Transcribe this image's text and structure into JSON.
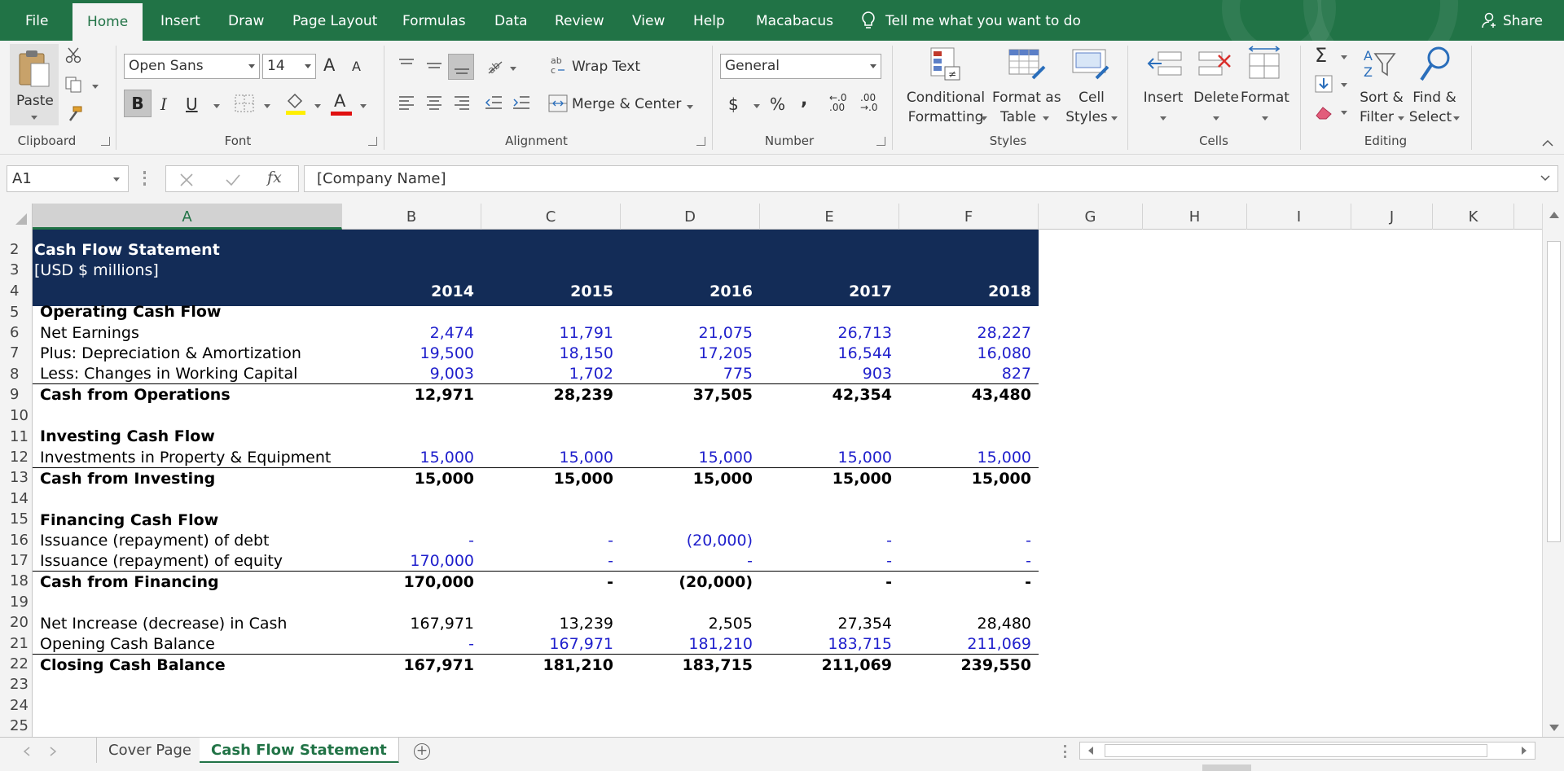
{
  "ribbon_tabs": [
    "File",
    "Home",
    "Insert",
    "Draw",
    "Page Layout",
    "Formulas",
    "Data",
    "Review",
    "View",
    "Help",
    "Macabacus"
  ],
  "tell_me": "Tell me what you want to do",
  "share": "Share",
  "ribbon": {
    "clipboard": {
      "paste": "Paste",
      "group": "Clipboard"
    },
    "font": {
      "name": "Open Sans",
      "size": "14",
      "group": "Font",
      "bold": "B",
      "italic": "I",
      "underline": "U",
      "grow": "A",
      "shrink": "A",
      "font_color": "A"
    },
    "alignment": {
      "wrap": "Wrap Text",
      "merge": "Merge & Center",
      "group": "Alignment"
    },
    "number": {
      "format": "General",
      "group": "Number",
      "currency": "$",
      "percent": "%",
      "comma": ",",
      "inc_dec": "←.0 .00",
      "dec_dec": ".00 →.0"
    },
    "styles": {
      "cond1": "Conditional",
      "cond2": "Formatting",
      "fmt1": "Format as",
      "fmt2": "Table",
      "cell1": "Cell",
      "cell2": "Styles",
      "group": "Styles"
    },
    "cells": {
      "insert": "Insert",
      "delete": "Delete",
      "format": "Format",
      "group": "Cells"
    },
    "editing": {
      "sort1": "Sort &",
      "sort2": "Filter",
      "find1": "Find &",
      "find2": "Select",
      "group": "Editing",
      "sigma": "Σ"
    }
  },
  "formula_bar": {
    "name_box": "A1",
    "fx": "fx",
    "content": "[Company Name]"
  },
  "columns": [
    "A",
    "B",
    "C",
    "D",
    "E",
    "F",
    "G",
    "H",
    "I",
    "J",
    "K"
  ],
  "rows": [
    "2",
    "3",
    "4",
    "5",
    "6",
    "7",
    "8",
    "9",
    "10",
    "11",
    "12",
    "13",
    "14",
    "15",
    "16",
    "17",
    "18",
    "19",
    "20",
    "21",
    "22",
    "23",
    "24",
    "25"
  ],
  "sheet": {
    "title": "Cash Flow Statement",
    "units": "[USD $ millions]",
    "years": [
      "2014",
      "2015",
      "2016",
      "2017",
      "2018"
    ],
    "sections": {
      "operating": "Operating Cash Flow",
      "investing": "Investing Cash Flow",
      "financing": "Financing Cash Flow"
    },
    "lines": {
      "net_earnings": {
        "label": "Net Earnings",
        "values": [
          "2,474",
          "11,791",
          "21,075",
          "26,713",
          "28,227"
        ]
      },
      "dep_amort": {
        "label": "Plus: Depreciation & Amortization",
        "values": [
          "19,500",
          "18,150",
          "17,205",
          "16,544",
          "16,080"
        ]
      },
      "wc": {
        "label": "Less: Changes in Working Capital",
        "values": [
          "9,003",
          "1,702",
          "775",
          "903",
          "827"
        ]
      },
      "cfo": {
        "label": "Cash from Operations",
        "values": [
          "12,971",
          "28,239",
          "37,505",
          "42,354",
          "43,480"
        ]
      },
      "ppe": {
        "label": "Investments in Property & Equipment",
        "values": [
          "15,000",
          "15,000",
          "15,000",
          "15,000",
          "15,000"
        ]
      },
      "cfi": {
        "label": "Cash from Investing",
        "values": [
          "15,000",
          "15,000",
          "15,000",
          "15,000",
          "15,000"
        ]
      },
      "debt": {
        "label": "Issuance (repayment) of debt",
        "values": [
          "-",
          "-",
          "(20,000)",
          "-",
          "-"
        ]
      },
      "equity": {
        "label": "Issuance (repayment) of equity",
        "values": [
          "170,000",
          "-",
          "-",
          "-",
          "-"
        ]
      },
      "cff": {
        "label": "Cash from Financing",
        "values": [
          "170,000",
          "-",
          "(20,000)",
          "-",
          "-"
        ]
      },
      "net_inc": {
        "label": "Net Increase (decrease) in Cash",
        "values": [
          "167,971",
          "13,239",
          "2,505",
          "27,354",
          "28,480"
        ]
      },
      "opening": {
        "label": "Opening Cash Balance",
        "values": [
          "-",
          "167,971",
          "181,210",
          "183,715",
          "211,069"
        ]
      },
      "closing": {
        "label": "Closing Cash Balance",
        "values": [
          "167,971",
          "181,210",
          "183,715",
          "211,069",
          "239,550"
        ]
      }
    }
  },
  "sheet_tabs": [
    "Cover Page",
    "Cash Flow Statement"
  ],
  "add_sheet": "+",
  "colors": {
    "excel_green": "#217346",
    "header_navy": "#132c57",
    "input_blue": "#1f1fcc"
  }
}
